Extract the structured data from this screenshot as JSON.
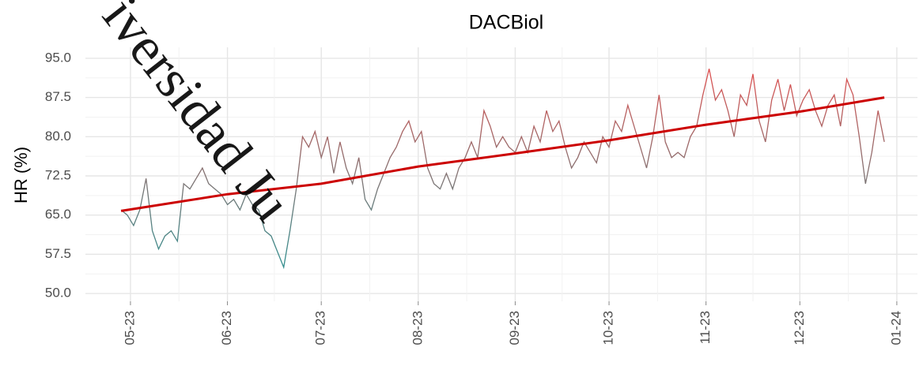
{
  "chart_data": {
    "type": "line",
    "title": "DACBiol",
    "y_label": "HR (%)",
    "watermark": "iversidad Ju",
    "xlim": [
      106.6,
      372.6
    ],
    "xticks": [
      {
        "value": 121,
        "label": "05-23"
      },
      {
        "value": 152,
        "label": "06-23"
      },
      {
        "value": 182,
        "label": "07-23"
      },
      {
        "value": 213,
        "label": "08-23"
      },
      {
        "value": 244,
        "label": "09-23"
      },
      {
        "value": 274,
        "label": "10-23"
      },
      {
        "value": 305,
        "label": "11-23"
      },
      {
        "value": 335,
        "label": "12-23"
      },
      {
        "value": 366,
        "label": "01-24"
      }
    ],
    "ylim": [
      48.5,
      97.1
    ],
    "yticks": [
      {
        "value": 50,
        "label": "50.0"
      },
      {
        "value": 57.5,
        "label": "57.5"
      },
      {
        "value": 65,
        "label": "65.0"
      },
      {
        "value": 72.5,
        "label": "72.5"
      },
      {
        "value": 80,
        "label": "80.0"
      },
      {
        "value": 87.5,
        "label": "87.5"
      },
      {
        "value": 95,
        "label": "95.0"
      }
    ],
    "grid": true,
    "gradient": {
      "low": "#159a9a",
      "high": "#f24a4a"
    },
    "x": [
      118,
      120,
      122,
      124,
      126,
      128,
      130,
      132,
      134,
      136,
      138,
      140,
      142,
      144,
      146,
      148,
      150,
      152,
      154,
      156,
      158,
      160,
      162,
      164,
      166,
      168,
      170,
      172,
      174,
      176,
      178,
      180,
      182,
      184,
      186,
      188,
      190,
      192,
      194,
      196,
      198,
      200,
      202,
      204,
      206,
      208,
      210,
      212,
      214,
      216,
      218,
      220,
      222,
      224,
      226,
      228,
      230,
      232,
      234,
      236,
      238,
      240,
      242,
      244,
      246,
      248,
      250,
      252,
      254,
      256,
      258,
      260,
      262,
      264,
      266,
      268,
      270,
      272,
      274,
      276,
      278,
      280,
      282,
      284,
      286,
      288,
      290,
      292,
      294,
      296,
      298,
      300,
      302,
      304,
      306,
      308,
      310,
      312,
      314,
      316,
      318,
      320,
      322,
      324,
      326,
      328,
      330,
      332,
      334,
      336,
      338,
      340,
      342,
      344,
      346,
      348,
      350,
      352,
      354,
      356,
      358,
      360,
      362
    ],
    "values": [
      66,
      65,
      63,
      66,
      72,
      62,
      58.5,
      61,
      62,
      60,
      71,
      70,
      72,
      74,
      71,
      70,
      69,
      67,
      68,
      66,
      69,
      67,
      66,
      62,
      61,
      58,
      55,
      62,
      70,
      80,
      78,
      81,
      76,
      80,
      73,
      79,
      74,
      71,
      76,
      68,
      66,
      70,
      73,
      76,
      78,
      81,
      83,
      79,
      81,
      74,
      71,
      70,
      73,
      70,
      74,
      76,
      79,
      76,
      85,
      82,
      78,
      80,
      78,
      77,
      80,
      77,
      82,
      79,
      85,
      81,
      83,
      78,
      74,
      76,
      79,
      77,
      75,
      80,
      78,
      83,
      81,
      86,
      82,
      78,
      74,
      80,
      88,
      79,
      76,
      77,
      76,
      80,
      82,
      88,
      93,
      87,
      89,
      85,
      80,
      88,
      86,
      92,
      83,
      79,
      87,
      91,
      85,
      90,
      84,
      87,
      89,
      85,
      82,
      86,
      88,
      82,
      91,
      88,
      80,
      71,
      77,
      85,
      79
    ],
    "trend": {
      "color": "#cc0000",
      "x": [
        118,
        152,
        182,
        213,
        244,
        274,
        305,
        335,
        362
      ],
      "values": [
        65.8,
        69,
        71,
        74.3,
        76.8,
        79.3,
        82.3,
        84.8,
        87.5
      ]
    }
  }
}
